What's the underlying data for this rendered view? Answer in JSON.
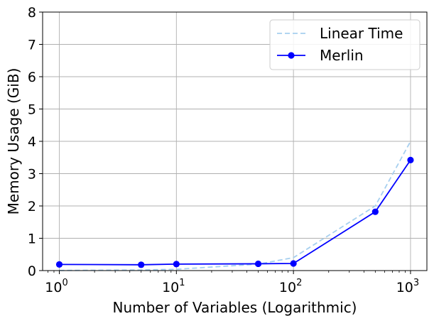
{
  "chart_data": {
    "type": "line",
    "title": "",
    "xlabel": "Number of Variables (Logarithmic)",
    "ylabel": "Memory Usage (GiB)",
    "x_scale": "log",
    "xlim": [
      0.72,
      1380
    ],
    "ylim": [
      0,
      8
    ],
    "grid": true,
    "legend_position": "top-right",
    "xticks": [
      {
        "value": 1,
        "base": "10",
        "exp": "0"
      },
      {
        "value": 10,
        "base": "10",
        "exp": "1"
      },
      {
        "value": 100,
        "base": "10",
        "exp": "2"
      },
      {
        "value": 1000,
        "base": "10",
        "exp": "3"
      }
    ],
    "yticks": [
      0,
      1,
      2,
      3,
      4,
      5,
      6,
      7,
      8
    ],
    "series": [
      {
        "name": "Linear Time",
        "style": "dashed",
        "marker": "none",
        "color": "#a6cfef",
        "x": [
          1,
          5,
          10,
          50,
          100,
          500,
          1000
        ],
        "y": [
          0.004,
          0.02,
          0.04,
          0.2,
          0.4,
          2.0,
          4.0
        ]
      },
      {
        "name": "Merlin",
        "style": "solid",
        "marker": "circle",
        "color": "#0000ff",
        "x": [
          1,
          5,
          10,
          50,
          100,
          500,
          1000
        ],
        "y": [
          0.19,
          0.18,
          0.2,
          0.21,
          0.22,
          1.82,
          3.42
        ]
      }
    ]
  }
}
